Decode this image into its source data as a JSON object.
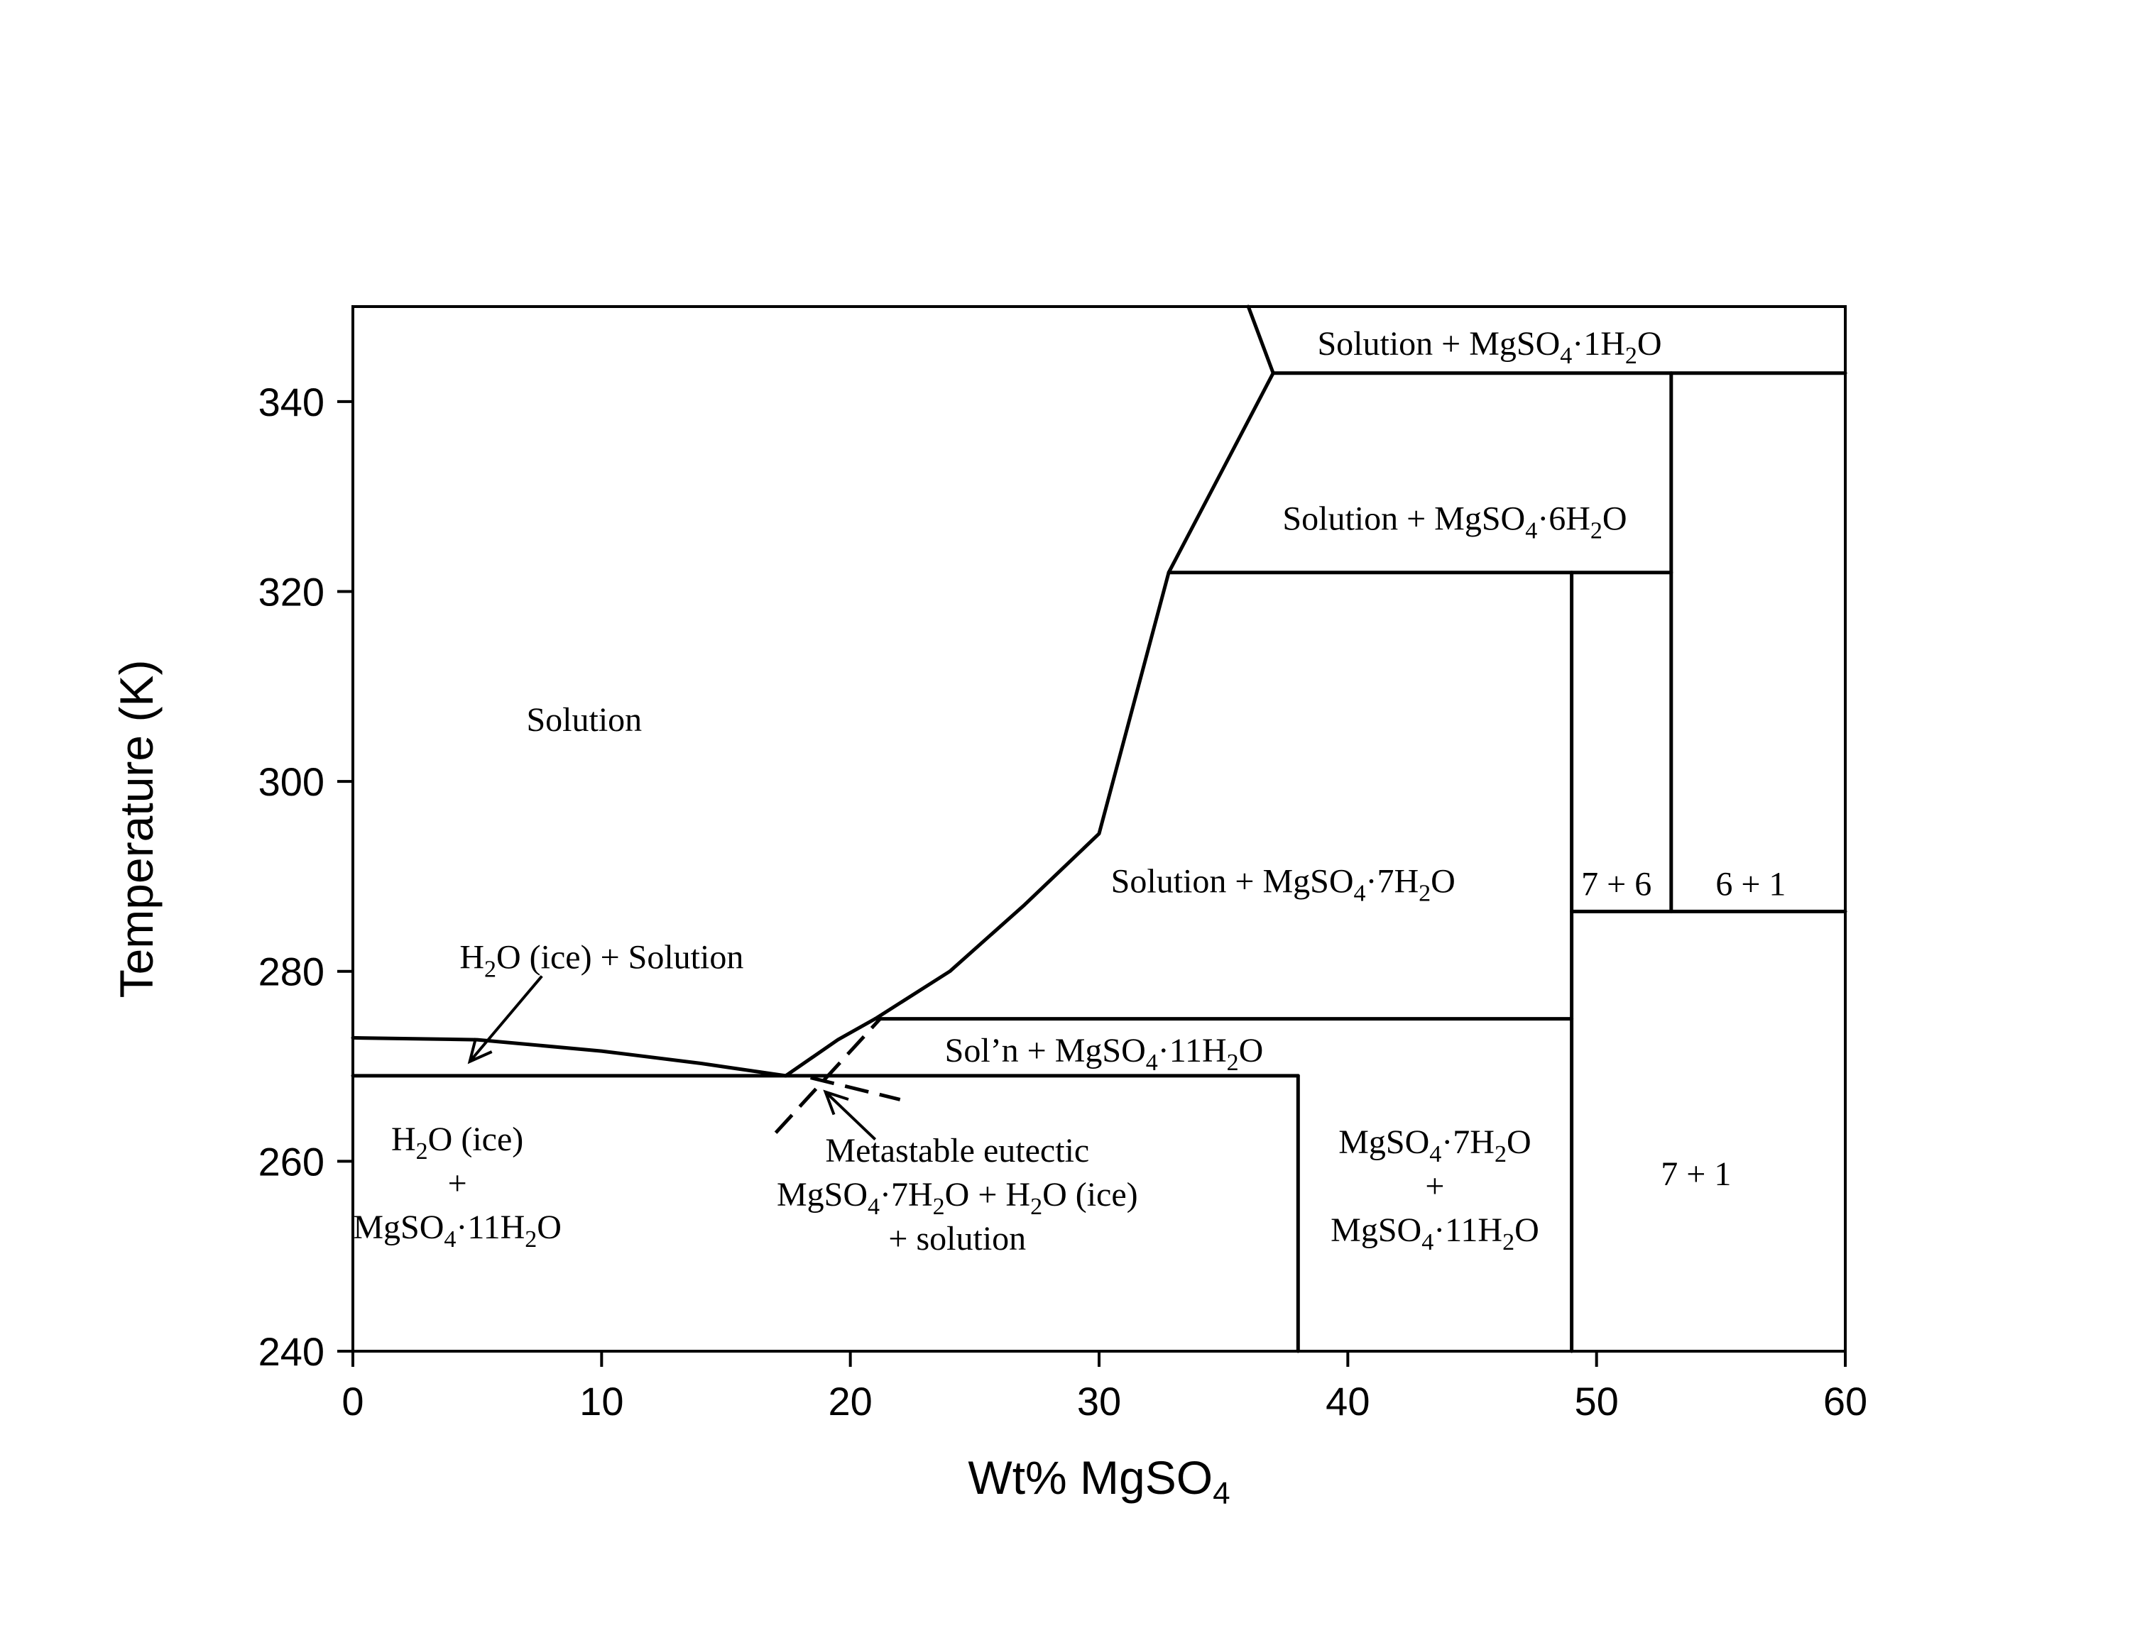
{
  "chart_data": {
    "type": "phase-diagram",
    "xlabel": "Wt% MgSO",
    "xlabel_sub": "4",
    "ylabel": "Temperature (K)",
    "xlim": [
      0,
      60
    ],
    "ylim": [
      240,
      350
    ],
    "x_ticks": [
      0,
      10,
      20,
      30,
      40,
      50,
      60
    ],
    "y_ticks": [
      240,
      260,
      280,
      300,
      320,
      340
    ],
    "solid_boundaries": [
      {
        "name": "ice-liquidus",
        "points": [
          [
            0,
            273
          ],
          [
            5,
            272.8
          ],
          [
            10,
            271.6
          ],
          [
            14,
            270.3
          ],
          [
            17.4,
            269
          ]
        ]
      },
      {
        "name": "eutectic-ice-mgso4-11h2o",
        "points": [
          [
            0,
            269
          ],
          [
            38,
            269
          ]
        ]
      },
      {
        "name": "mgso4-11h2o-liquidus",
        "points": [
          [
            17.4,
            269
          ],
          [
            19.5,
            272.8
          ],
          [
            21,
            275
          ]
        ]
      },
      {
        "name": "peritectic-11h2o-7h2o",
        "points": [
          [
            21,
            275
          ],
          [
            49,
            275
          ]
        ]
      },
      {
        "name": "mgso4-7h2o-liquidus",
        "points": [
          [
            21,
            275
          ],
          [
            24,
            280
          ],
          [
            27,
            287
          ],
          [
            30,
            294.5
          ],
          [
            32.8,
            322
          ],
          [
            35,
            333
          ],
          [
            37,
            343
          ]
        ]
      },
      {
        "name": "peritectic-7h2o-6h2o",
        "points": [
          [
            32.8,
            322
          ],
          [
            53,
            322
          ]
        ]
      },
      {
        "name": "peritectic-6h2o-1h2o",
        "points": [
          [
            37,
            343
          ],
          [
            60,
            343
          ]
        ]
      },
      {
        "name": "mgso4-1h2o-liquidus",
        "points": [
          [
            37,
            343
          ],
          [
            36,
            350
          ]
        ]
      },
      {
        "name": "mgso4-11h2o-composition",
        "points": [
          [
            38,
            240
          ],
          [
            38,
            269
          ]
        ]
      },
      {
        "name": "mgso4-7h2o-composition",
        "points": [
          [
            49,
            240
          ],
          [
            49,
            322
          ]
        ]
      },
      {
        "name": "mgso4-6h2o-composition",
        "points": [
          [
            53,
            286.3
          ],
          [
            53,
            343
          ]
        ]
      },
      {
        "name": "transition-7h2o-6h2o",
        "points": [
          [
            49,
            286.3
          ],
          [
            60,
            286.3
          ]
        ]
      }
    ],
    "dashed_boundaries": [
      {
        "name": "metastable-7h2o-liquidus",
        "points": [
          [
            17,
            263
          ],
          [
            21.2,
            275
          ]
        ]
      },
      {
        "name": "metastable-ice-liquidus",
        "points": [
          [
            18.4,
            268.8
          ],
          [
            22,
            266.5
          ]
        ]
      }
    ],
    "arrows": [
      {
        "name": "ice-solution-arrow",
        "from": [
          7.6,
          279.5
        ],
        "to": [
          4.7,
          270.5
        ]
      },
      {
        "name": "metastable-eutectic-arrow",
        "from": [
          21,
          262.3
        ],
        "to": [
          19,
          267.3
        ]
      }
    ],
    "labels": [
      {
        "name": "solution",
        "lines": [
          [
            {
              "t": "Solution"
            }
          ]
        ],
        "at": [
          9.3,
          306.5
        ]
      },
      {
        "name": "ice-solution",
        "lines": [
          [
            {
              "t": "H"
            },
            {
              "t": "2",
              "sub": true
            },
            {
              "t": "O (ice) + Solution"
            }
          ]
        ],
        "at": [
          10,
          281.5
        ]
      },
      {
        "name": "ice-mgso4-11h2o",
        "lines": [
          [
            {
              "t": "H"
            },
            {
              "t": "2",
              "sub": true
            },
            {
              "t": "O (ice)"
            }
          ],
          [
            {
              "t": "+"
            }
          ],
          [
            {
              "t": "MgSO"
            },
            {
              "t": "4",
              "sub": true
            },
            {
              "t": "·11H"
            },
            {
              "t": "2",
              "sub": true
            },
            {
              "t": "O"
            }
          ]
        ],
        "at": [
          4.2,
          257.7
        ]
      },
      {
        "name": "metastable-eutectic",
        "lines": [
          [
            {
              "t": "Metastable eutectic"
            }
          ],
          [
            {
              "t": "MgSO"
            },
            {
              "t": "4",
              "sub": true
            },
            {
              "t": "·7H"
            },
            {
              "t": "2",
              "sub": true
            },
            {
              "t": "O + H"
            },
            {
              "t": "2",
              "sub": true
            },
            {
              "t": "O (ice)"
            }
          ],
          [
            {
              "t": "+ solution"
            }
          ]
        ],
        "at": [
          24.3,
          256.5
        ]
      },
      {
        "name": "soln-mgso4-11h2o",
        "lines": [
          [
            {
              "t": "Sol’n + MgSO"
            },
            {
              "t": "4",
              "sub": true
            },
            {
              "t": "·11H"
            },
            {
              "t": "2",
              "sub": true
            },
            {
              "t": "O"
            }
          ]
        ],
        "at": [
          30.2,
          271.7
        ]
      },
      {
        "name": "mgso4-7h2o-mgso4-11h2o",
        "lines": [
          [
            {
              "t": "MgSO"
            },
            {
              "t": "4",
              "sub": true
            },
            {
              "t": "·7H"
            },
            {
              "t": "2",
              "sub": true
            },
            {
              "t": "O"
            }
          ],
          [
            {
              "t": "+"
            }
          ],
          [
            {
              "t": "MgSO"
            },
            {
              "t": "4",
              "sub": true
            },
            {
              "t": "·11H"
            },
            {
              "t": "2",
              "sub": true
            },
            {
              "t": "O"
            }
          ]
        ],
        "at": [
          43.5,
          257.4
        ]
      },
      {
        "name": "solution-mgso4-7h2o",
        "lines": [
          [
            {
              "t": "Solution + MgSO"
            },
            {
              "t": "4",
              "sub": true
            },
            {
              "t": "·7H"
            },
            {
              "t": "2",
              "sub": true
            },
            {
              "t": "O"
            }
          ]
        ],
        "at": [
          37.4,
          289.5
        ]
      },
      {
        "name": "solution-mgso4-6h2o",
        "lines": [
          [
            {
              "t": "Solution + MgSO"
            },
            {
              "t": "4",
              "sub": true
            },
            {
              "t": "·6H"
            },
            {
              "t": "2",
              "sub": true
            },
            {
              "t": "O"
            }
          ]
        ],
        "at": [
          44.3,
          327.7
        ]
      },
      {
        "name": "solution-mgso4-1h2o",
        "lines": [
          [
            {
              "t": "Solution + MgSO"
            },
            {
              "t": "4",
              "sub": true
            },
            {
              "t": "·1H"
            },
            {
              "t": "2",
              "sub": true
            },
            {
              "t": "O"
            }
          ]
        ],
        "at": [
          45.7,
          346.1
        ]
      },
      {
        "name": "7-plus-6",
        "lines": [
          [
            {
              "t": "7 + 6"
            }
          ]
        ],
        "at": [
          50.8,
          289.2
        ]
      },
      {
        "name": "6-plus-1",
        "lines": [
          [
            {
              "t": "6 + 1"
            }
          ]
        ],
        "at": [
          56.2,
          289.2
        ]
      },
      {
        "name": "7-plus-1",
        "lines": [
          [
            {
              "t": "7 + 1"
            }
          ]
        ],
        "at": [
          54,
          258.7
        ]
      }
    ]
  }
}
